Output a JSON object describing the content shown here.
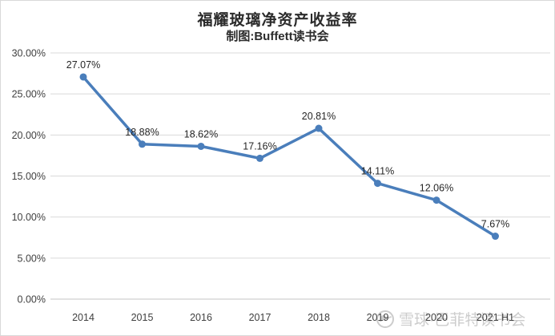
{
  "header": {
    "title": "福耀玻璃净资产收益率",
    "subtitle": "制图:Buffett读书会"
  },
  "watermark": {
    "text": "雪球·巴菲特读书会"
  },
  "colors": {
    "line": "#4a7ebb",
    "marker": "#4a7ebb",
    "grid": "#d9d9d9",
    "axis": "#c6c6c6",
    "tick_text": "#404040",
    "data_label_text": "#262626",
    "watermark_text": "#cccccc",
    "background": "#ffffff"
  },
  "chart_data": {
    "type": "line",
    "title": "福耀玻璃净资产收益率",
    "subtitle": "制图:Buffett读书会",
    "categories": [
      "2014",
      "2015",
      "2016",
      "2017",
      "2018",
      "2019",
      "2020",
      "2021 H1"
    ],
    "values": [
      27.07,
      18.88,
      18.62,
      17.16,
      20.81,
      14.11,
      12.06,
      7.67
    ],
    "data_labels": [
      "27.07%",
      "18.88%",
      "18.62%",
      "17.16%",
      "20.81%",
      "14.11%",
      "12.06%",
      "7.67%"
    ],
    "xlabel": "",
    "ylabel": "",
    "ylim": [
      0,
      30
    ],
    "ytick_step": 5,
    "ytick_labels": [
      "0.00%",
      "5.00%",
      "10.00%",
      "15.00%",
      "20.00%",
      "25.00%",
      "30.00%"
    ],
    "grid": true,
    "legend_position": "none",
    "marker": "circle"
  }
}
